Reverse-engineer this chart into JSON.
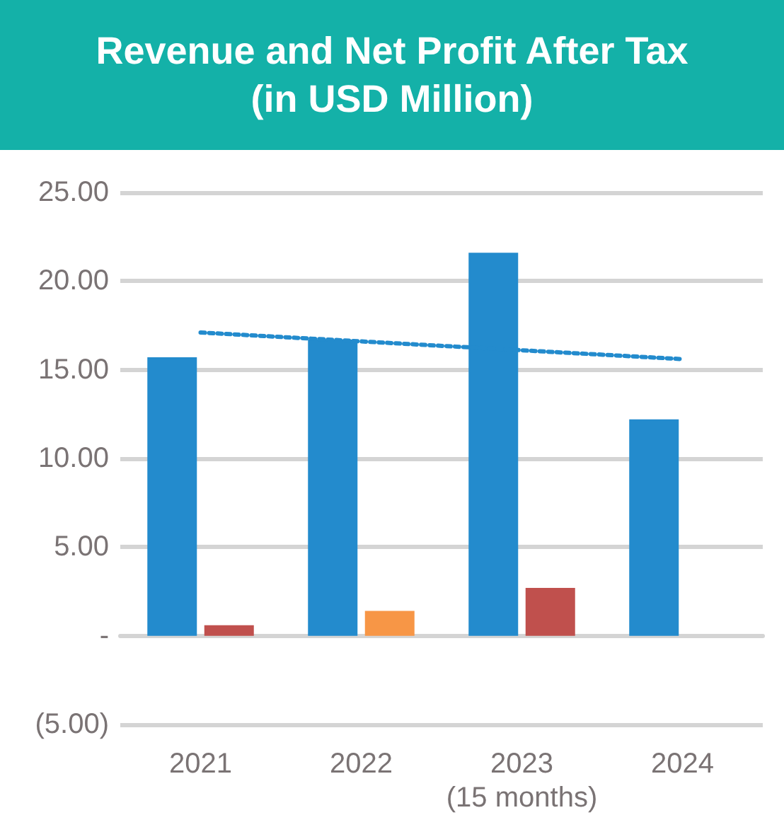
{
  "chart_data": {
    "type": "bar",
    "title": "Revenue and Net Profit After Tax (in USD Million)",
    "categories": [
      "2021",
      "2022",
      "2023 (15 months)",
      "2024"
    ],
    "series": [
      {
        "color": "#238bcd",
        "values": [
          15.7,
          16.7,
          21.6,
          12.2
        ]
      },
      {
        "color": "#c0504d",
        "colors": [
          "#c0504d",
          "#f79646",
          "#c0504d",
          "#c0504d"
        ],
        "values": [
          0.6,
          1.4,
          2.7,
          null
        ]
      },
      {
        "type": "line",
        "color": "#238bcd",
        "line_style": "dotted",
        "marker": "none",
        "values": [
          17.1,
          16.6,
          16.1,
          15.6
        ]
      }
    ],
    "ylim": [
      -5,
      25
    ],
    "yticks": [
      {
        "value": -5,
        "label": "(5.00)"
      },
      {
        "value": 0,
        "label": "-"
      },
      {
        "value": 5,
        "label": "5.00"
      },
      {
        "value": 10,
        "label": "10.00"
      },
      {
        "value": 15,
        "label": "15.00"
      },
      {
        "value": 20,
        "label": "20.00"
      },
      {
        "value": 25,
        "label": "25.00"
      }
    ],
    "grid": "y"
  }
}
